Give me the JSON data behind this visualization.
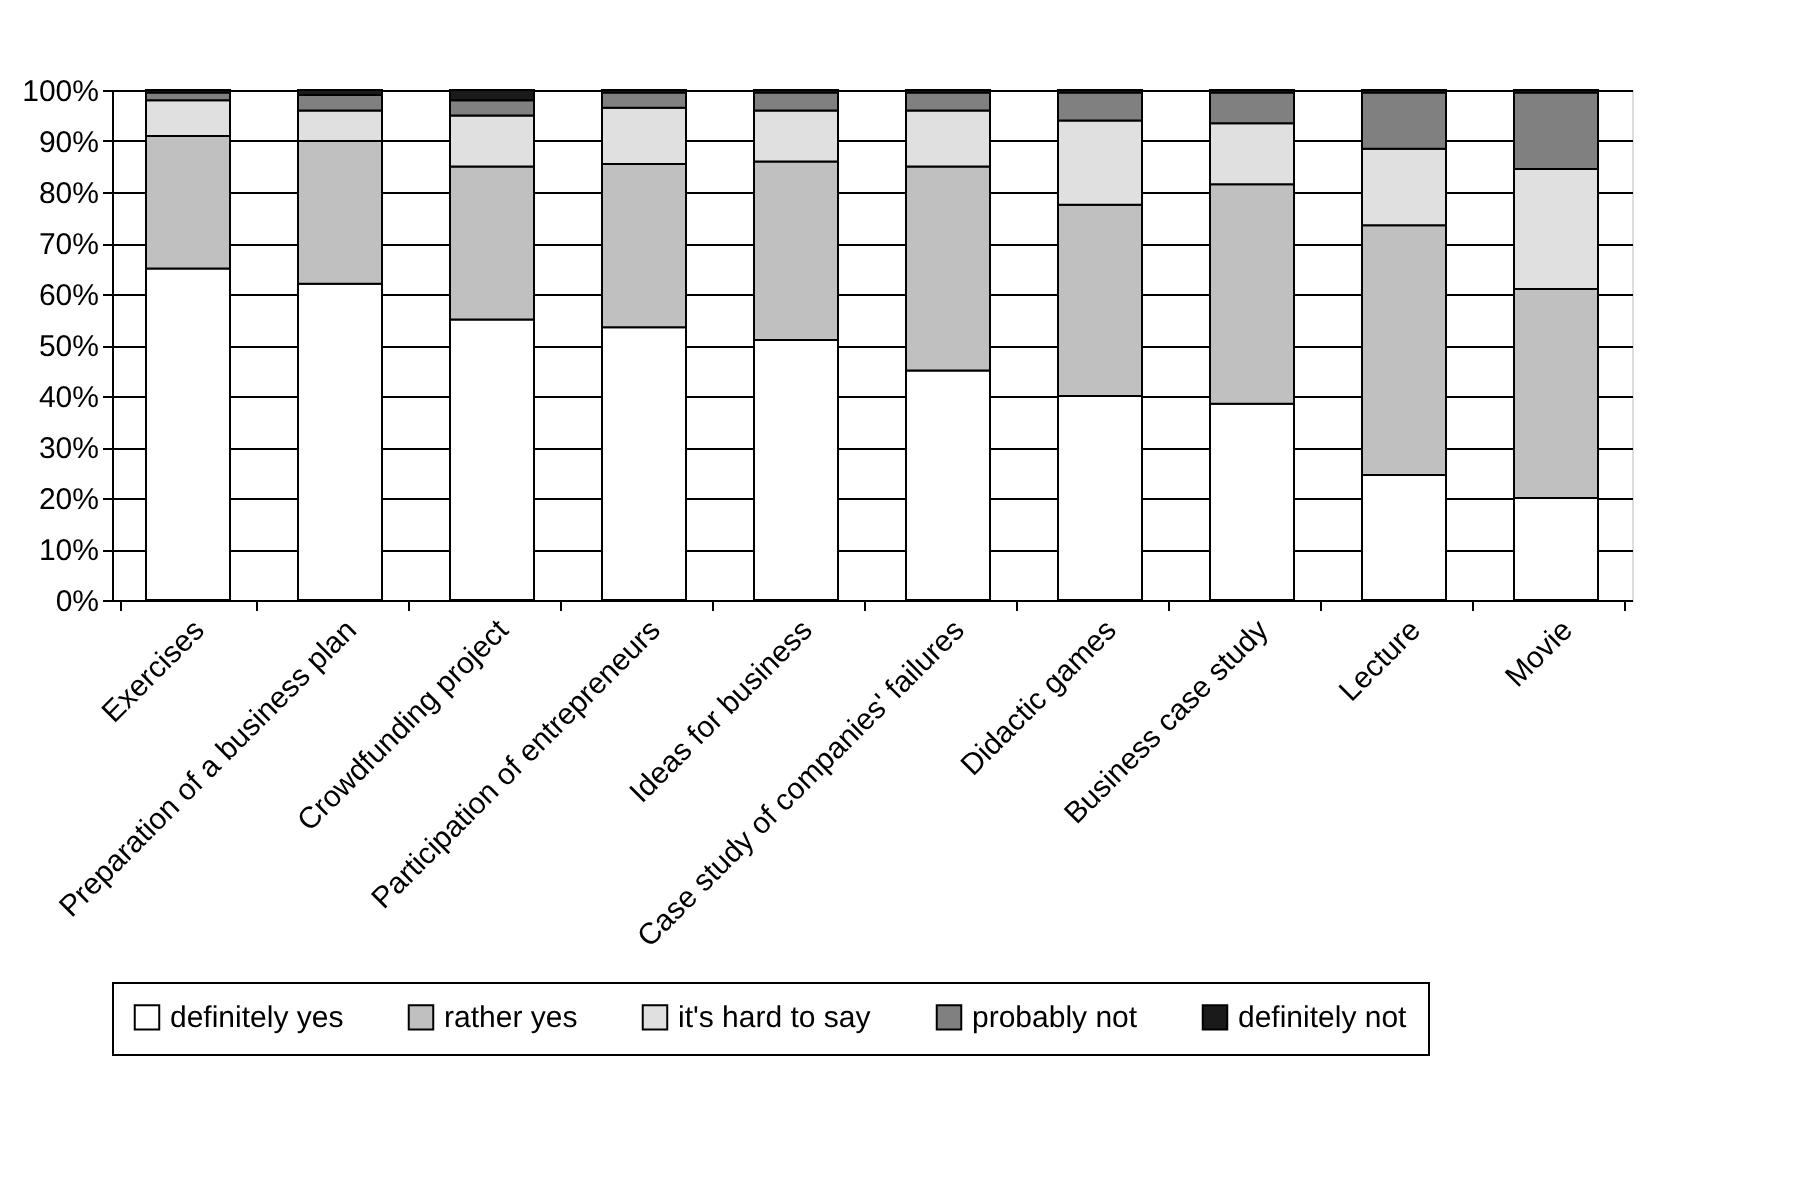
{
  "chart_data": {
    "type": "bar",
    "stacked": true,
    "categories": [
      "Exercises",
      "Preparation of a business plan",
      "Crowdfunding project",
      "Participation of entrepreneurs",
      "Ideas for business",
      "Case study of companies' failures",
      "Didactic games",
      "Business case study",
      "Lecture",
      "Movie"
    ],
    "series": [
      {
        "name": "definitely yes",
        "color": "#ffffff",
        "values": [
          65,
          62,
          55,
          53.5,
          51,
          45,
          40,
          38.5,
          24.5,
          20
        ]
      },
      {
        "name": "rather yes",
        "color": "#c0c0c0",
        "values": [
          26,
          28,
          30,
          32,
          35,
          40,
          37.5,
          43,
          49,
          41
        ]
      },
      {
        "name": "it's hard to say",
        "color": "#e0e0e0",
        "values": [
          7,
          6,
          10,
          11,
          10,
          11,
          16.5,
          12,
          15,
          23.5
        ]
      },
      {
        "name": "probably not",
        "color": "#808080",
        "values": [
          1.5,
          3,
          3,
          3,
          3.5,
          3.5,
          5.5,
          6,
          11,
          15
        ]
      },
      {
        "name": "definitely not",
        "color": "#1a1a1a",
        "values": [
          0.5,
          1,
          2,
          0.5,
          0.5,
          0.5,
          0.5,
          0.5,
          0.5,
          0.5
        ]
      }
    ],
    "ylim": [
      0,
      100
    ],
    "yticks": [
      {
        "value": 0,
        "label": "0%"
      },
      {
        "value": 10,
        "label": "10%"
      },
      {
        "value": 20,
        "label": "20%"
      },
      {
        "value": 30,
        "label": "30%"
      },
      {
        "value": 40,
        "label": "40%"
      },
      {
        "value": 50,
        "label": "50%"
      },
      {
        "value": 60,
        "label": "60%"
      },
      {
        "value": 70,
        "label": "70%"
      },
      {
        "value": 80,
        "label": "80%"
      },
      {
        "value": 90,
        "label": "90%"
      },
      {
        "value": 100,
        "label": "100%"
      }
    ],
    "grid": "y",
    "legend": "bottom"
  }
}
